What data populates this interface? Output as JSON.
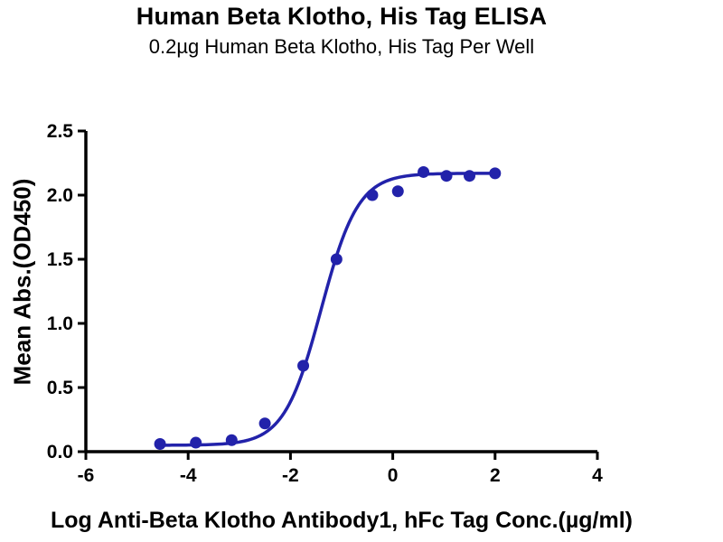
{
  "header": {
    "title": "Human Beta Klotho, His Tag ELISA",
    "subtitle": "0.2µg Human Beta Klotho, His Tag Per Well"
  },
  "chart_data": {
    "type": "scatter",
    "title": "Human Beta Klotho, His Tag ELISA",
    "subtitle": "0.2µg Human Beta Klotho, His Tag Per Well",
    "xlabel": "Log Anti-Beta Klotho Antibody1, hFc Tag Conc.(µg/ml)",
    "ylabel": "Mean Abs.(OD450)",
    "xlim": [
      -6,
      4
    ],
    "ylim": [
      0,
      2.5
    ],
    "x_ticks": [
      -6,
      -4,
      -2,
      0,
      2,
      4
    ],
    "y_ticks": [
      0,
      0.5,
      1,
      1.5,
      2,
      2.5
    ],
    "grid": false,
    "legend": null,
    "points": {
      "x": [
        -4.55,
        -3.85,
        -3.15,
        -2.5,
        -1.75,
        -1.1,
        -0.4,
        0.1,
        0.6,
        1.05,
        1.5,
        2.0
      ],
      "y": [
        0.06,
        0.07,
        0.09,
        0.22,
        0.67,
        1.5,
        2.0,
        2.03,
        2.18,
        2.15,
        2.15,
        2.17
      ]
    },
    "fit_curve": {
      "model": "4PL-sigmoid",
      "bottom": 0.05,
      "top": 2.17,
      "logEC50": -1.4,
      "hill": 1.2,
      "x_range": [
        -4.55,
        2.0
      ]
    },
    "point_color": "#2222AA",
    "line_color": "#2222AA",
    "axis_color": "#000000"
  }
}
